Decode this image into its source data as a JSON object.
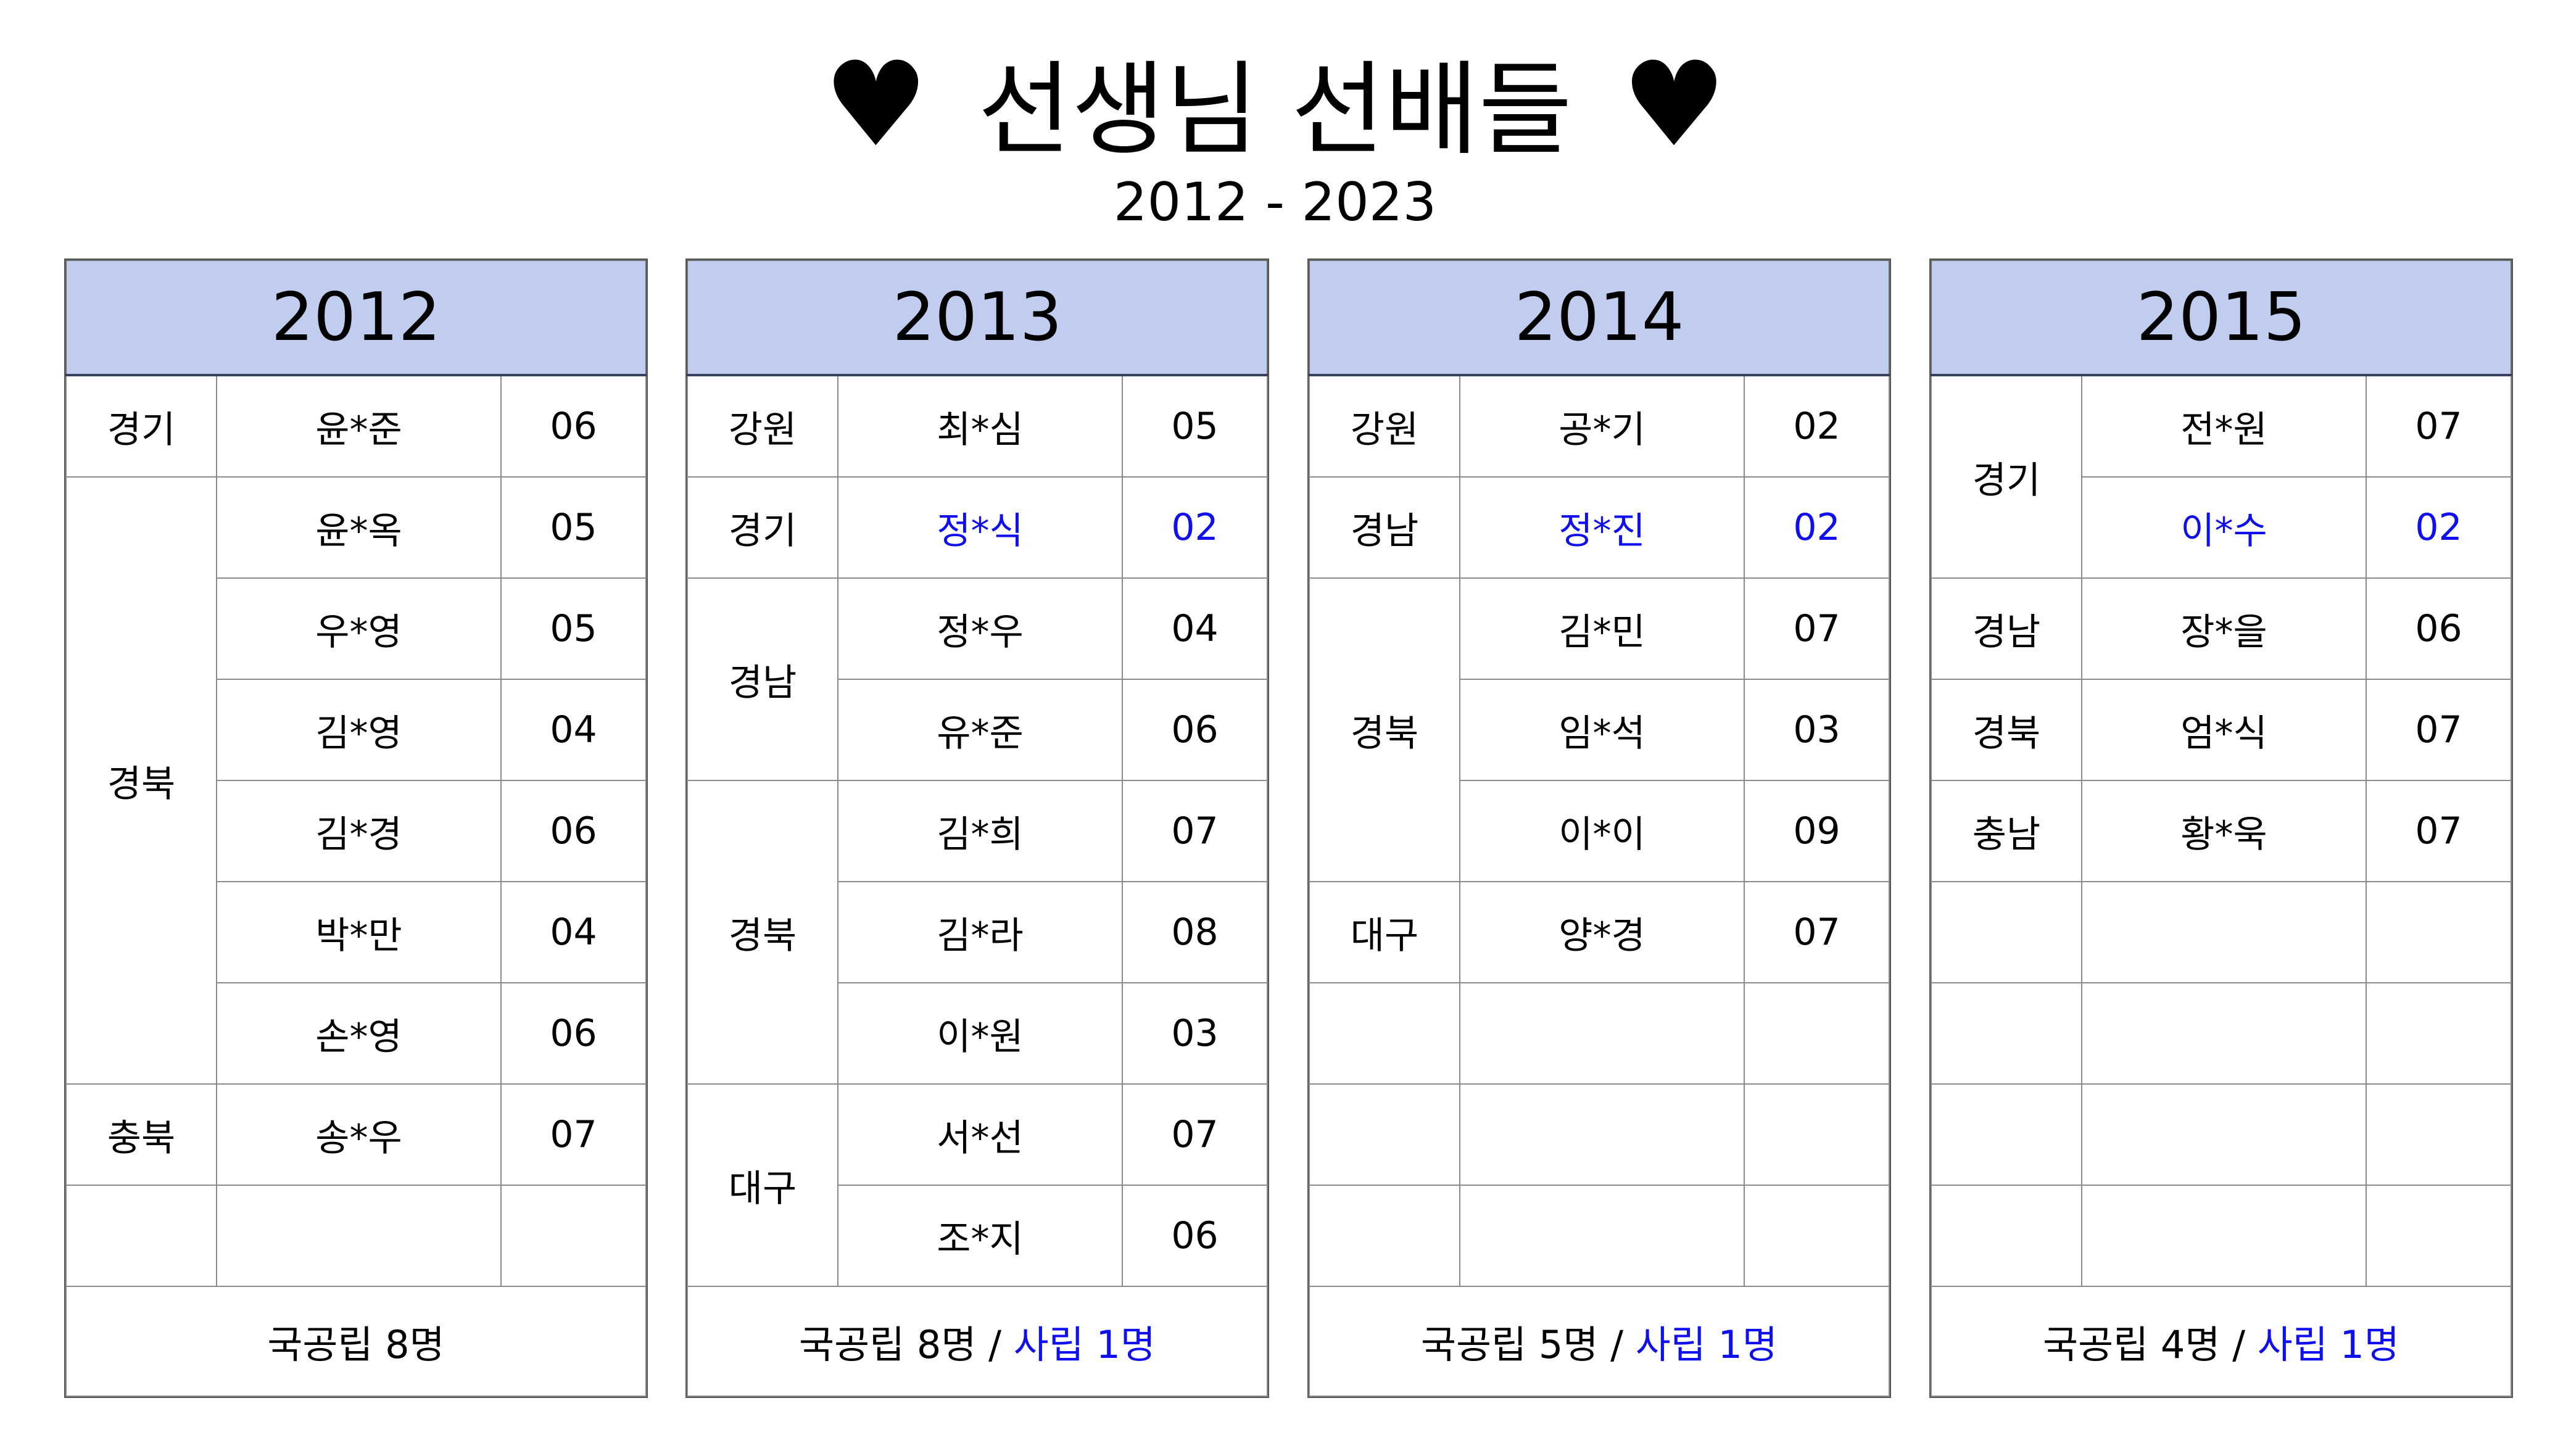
{
  "title": "선생님 선배들",
  "heart_icon": "♥",
  "subtitle": "2012 - 2023",
  "colors": {
    "header_bg": "#c0cdee",
    "private_text": "#1010ee"
  },
  "tables": [
    {
      "year": "2012",
      "groups": [
        {
          "region": "경기",
          "people": [
            {
              "name": "윤*준",
              "grade": "06"
            }
          ]
        },
        {
          "region": "경북",
          "people": [
            {
              "name": "윤*옥",
              "grade": "05"
            },
            {
              "name": "우*영",
              "grade": "05"
            },
            {
              "name": "김*영",
              "grade": "04"
            },
            {
              "name": "김*경",
              "grade": "06"
            },
            {
              "name": "박*만",
              "grade": "04"
            },
            {
              "name": "손*영",
              "grade": "06"
            }
          ]
        },
        {
          "region": "충북",
          "people": [
            {
              "name": "송*우",
              "grade": "07"
            }
          ]
        },
        {
          "region": "",
          "people": [
            {
              "name": "",
              "grade": ""
            }
          ]
        }
      ],
      "footer": {
        "public": "국공립 8명",
        "separator": "",
        "private": ""
      }
    },
    {
      "year": "2013",
      "groups": [
        {
          "region": "강원",
          "people": [
            {
              "name": "최*심",
              "grade": "05"
            }
          ]
        },
        {
          "region": "경기",
          "people": [
            {
              "name": "정*식",
              "grade": "02",
              "private": true
            }
          ]
        },
        {
          "region": "경남",
          "people": [
            {
              "name": "정*우",
              "grade": "04"
            },
            {
              "name": "유*준",
              "grade": "06"
            }
          ]
        },
        {
          "region": "경북",
          "people": [
            {
              "name": "김*희",
              "grade": "07"
            },
            {
              "name": "김*라",
              "grade": "08"
            },
            {
              "name": "이*원",
              "grade": "03"
            }
          ]
        },
        {
          "region": "대구",
          "people": [
            {
              "name": "서*선",
              "grade": "07"
            },
            {
              "name": "조*지",
              "grade": "06"
            }
          ]
        }
      ],
      "footer": {
        "public": "국공립 8명",
        "separator": " / ",
        "private": "사립 1명"
      }
    },
    {
      "year": "2014",
      "groups": [
        {
          "region": "강원",
          "people": [
            {
              "name": "공*기",
              "grade": "02"
            }
          ]
        },
        {
          "region": "경남",
          "people": [
            {
              "name": "정*진",
              "grade": "02",
              "private": true
            }
          ]
        },
        {
          "region": "경북",
          "people": [
            {
              "name": "김*민",
              "grade": "07"
            },
            {
              "name": "임*석",
              "grade": "03"
            },
            {
              "name": "이*이",
              "grade": "09"
            }
          ]
        },
        {
          "region": "대구",
          "people": [
            {
              "name": "양*경",
              "grade": "07"
            }
          ]
        },
        {
          "region": "",
          "people": [
            {
              "name": "",
              "grade": ""
            }
          ]
        },
        {
          "region": "",
          "people": [
            {
              "name": "",
              "grade": ""
            }
          ]
        },
        {
          "region": "",
          "people": [
            {
              "name": "",
              "grade": ""
            }
          ]
        }
      ],
      "footer": {
        "public": "국공립 5명",
        "separator": " / ",
        "private": "사립 1명"
      }
    },
    {
      "year": "2015",
      "groups": [
        {
          "region": "경기",
          "people": [
            {
              "name": "전*원",
              "grade": "07"
            },
            {
              "name": "이*수",
              "grade": "02",
              "private": true
            }
          ]
        },
        {
          "region": "경남",
          "people": [
            {
              "name": "장*을",
              "grade": "06"
            }
          ]
        },
        {
          "region": "경북",
          "people": [
            {
              "name": "엄*식",
              "grade": "07"
            }
          ]
        },
        {
          "region": "충남",
          "people": [
            {
              "name": "황*욱",
              "grade": "07"
            }
          ]
        },
        {
          "region": "",
          "people": [
            {
              "name": "",
              "grade": ""
            }
          ]
        },
        {
          "region": "",
          "people": [
            {
              "name": "",
              "grade": ""
            }
          ]
        },
        {
          "region": "",
          "people": [
            {
              "name": "",
              "grade": ""
            }
          ]
        },
        {
          "region": "",
          "people": [
            {
              "name": "",
              "grade": ""
            }
          ]
        }
      ],
      "footer": {
        "public": "국공립 4명",
        "separator": " / ",
        "private": "사립 1명"
      }
    }
  ]
}
